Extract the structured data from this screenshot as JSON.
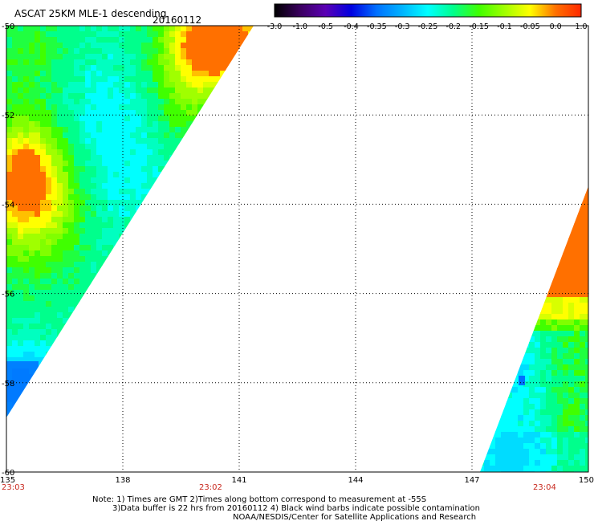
{
  "title": "ASCAT 25KM MLE-1 descending",
  "date": "20160112",
  "colorbar": {
    "labels": [
      "-3.0",
      "-1.0",
      "-0.5",
      "-0.4",
      "-0.35",
      "-0.3",
      "-0.25",
      "-0.2",
      "-0.15",
      "-0.1",
      "-0.05",
      "0.0",
      "1.0"
    ],
    "colors": [
      "#000000",
      "#3a005e",
      "#5a00b4",
      "#0000e0",
      "#0070ff",
      "#00b4ff",
      "#00ffff",
      "#00ff8c",
      "#40ff00",
      "#a0ff00",
      "#ffff00",
      "#ff7000",
      "#ff2800"
    ]
  },
  "lat_labels": [
    "-50",
    "-52",
    "-54",
    "-56",
    "-58",
    "-60"
  ],
  "lon_labels": [
    "135",
    "138",
    "141",
    "144",
    "147",
    "150"
  ],
  "time_labels": [
    "23:03",
    "23:02",
    "23:04"
  ],
  "notes": [
    "Note: 1) Times are GMT 2)Times along bottom correspond to measurement at -55S",
    "3)Data buffer is 22 hrs from 20160112 4) Black wind barbs indicate possible contamination",
    "NOAA/NESDIS/Center for Satellite Applications and Research"
  ],
  "map_data": {
    "lon_range": [
      135,
      150
    ],
    "lat_range": [
      -60,
      -50
    ],
    "grid_lines": true,
    "swaths": [
      {
        "name": "west",
        "region_lat": [
          -59.2,
          -50
        ],
        "dominant_values": [
          "-0.25",
          "-0.2",
          "-0.15",
          "-0.05",
          "0.0"
        ]
      },
      {
        "name": "east",
        "region_lat": [
          -60,
          -54
        ],
        "dominant_values": [
          "-0.25",
          "-0.2",
          "-0.15",
          "0.0"
        ]
      }
    ]
  }
}
